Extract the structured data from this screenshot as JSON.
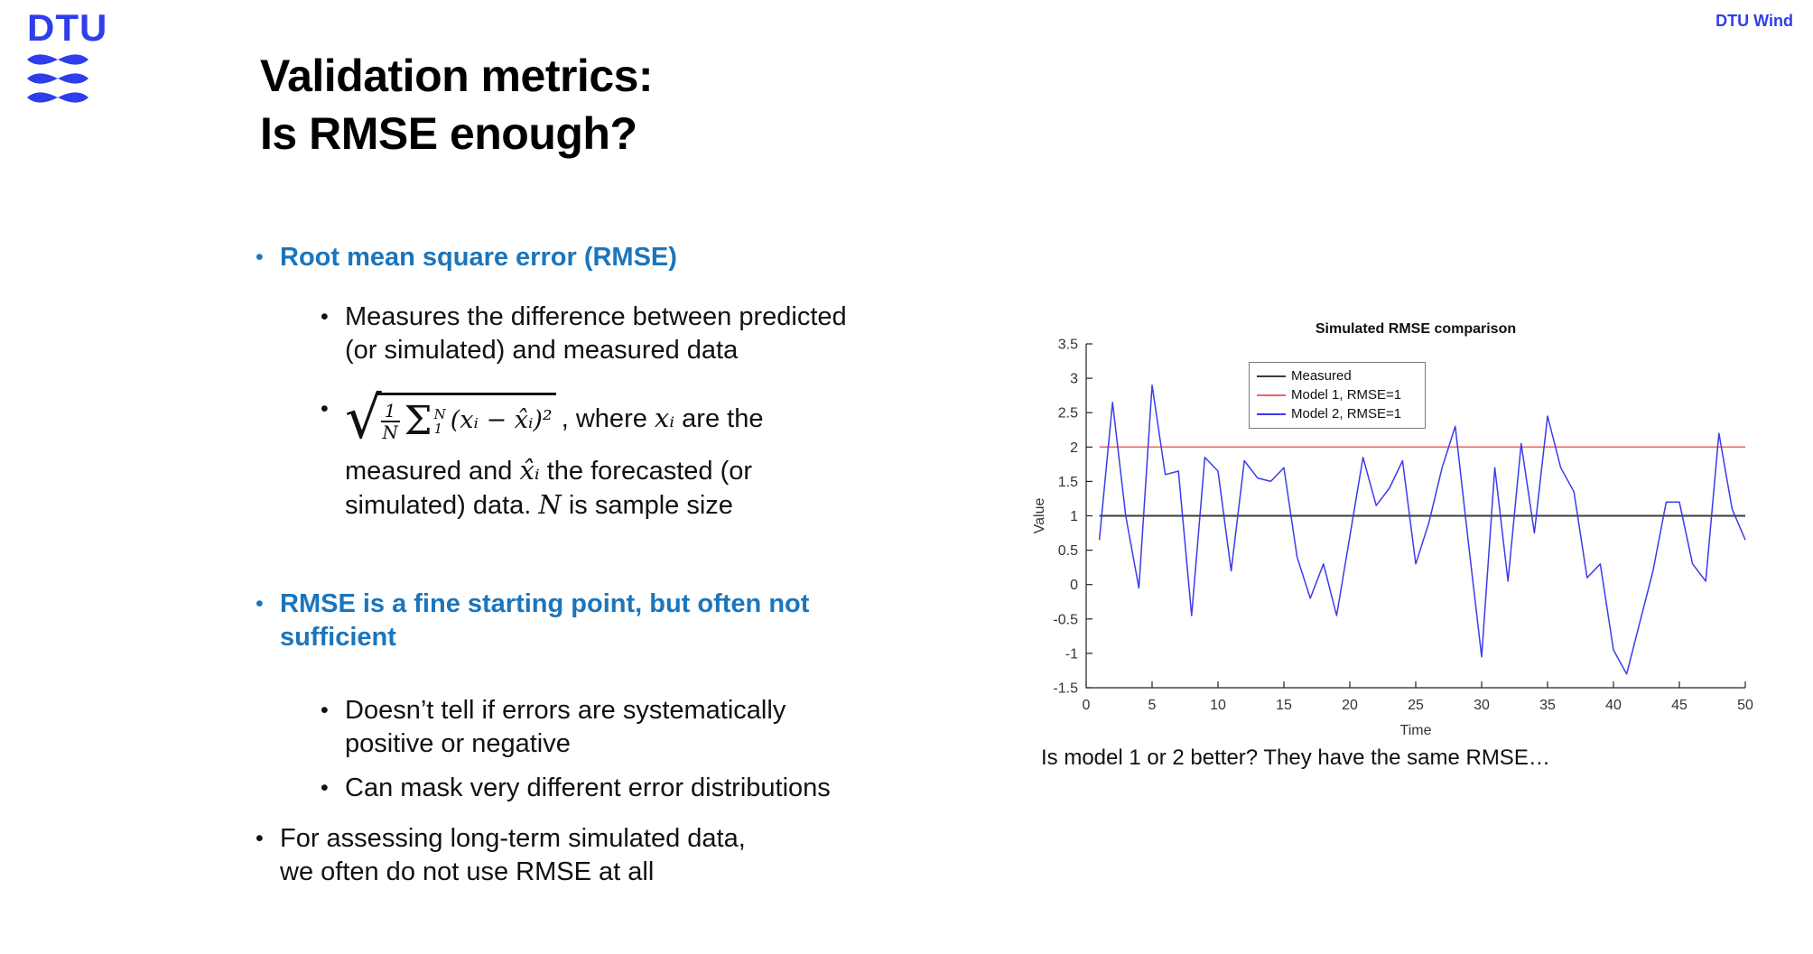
{
  "header": {
    "logo_text": "DTU",
    "org_label": "DTU Wind"
  },
  "bullet_char": "•",
  "title": {
    "line1": "Validation metrics:",
    "line2": "Is RMSE enough?"
  },
  "bullets": {
    "b1": "Root mean square error (RMSE)",
    "b2": "Measures the difference between predicted (or simulated) and measured data",
    "b3": "RMSE is a fine starting point, but often not sufficient",
    "b4": "Doesn’t tell if errors are systematically positive or negative",
    "b5": "Can mask very different error distributions",
    "b6": "For assessing long-term simulated data, we often do not use RMSE at all"
  },
  "formula": {
    "radical_char": "√",
    "frac_num": "1",
    "frac_den": "N",
    "sum_char": "Σ",
    "sum_upper": "N",
    "sum_lower": "1",
    "expr": "(xᵢ − x̂ᵢ)²",
    "where_pre": ", where ",
    "where_math": "xᵢ",
    "where_post": " are the",
    "l2_pre": "measured and ",
    "l2_math": "x̂ᵢ",
    "l2_post": " the forecasted (or",
    "l3_pre": "simulated) data. ",
    "l3_math": "N",
    "l3_post": " is sample size"
  },
  "caption": "Is model 1 or 2 better? They have the same RMSE…",
  "colors": {
    "dtu_blue": "#2f3eea",
    "accent_blue": "#1b75bc",
    "measured_line": "#3a3a3a",
    "model1_line": "#f5615c",
    "model2_line": "#3b3bec"
  },
  "chart_data": {
    "type": "line",
    "title": "Simulated RMSE comparison",
    "xlabel": "Time",
    "ylabel": "Value",
    "xlim": [
      0,
      50
    ],
    "ylim": [
      -1.5,
      3.5
    ],
    "xticks": [
      0,
      5,
      10,
      15,
      20,
      25,
      30,
      35,
      40,
      45,
      50
    ],
    "yticks": [
      -1.5,
      -1,
      -0.5,
      0,
      0.5,
      1,
      1.5,
      2,
      2.5,
      3,
      3.5
    ],
    "grid": false,
    "legend_position": "inside-top",
    "series": [
      {
        "name": "Measured",
        "color": "#3a3a3a",
        "stroke_width": 2,
        "x": [
          1,
          50
        ],
        "values": [
          1,
          1
        ]
      },
      {
        "name": "Model 1, RMSE=1",
        "color": "#f5615c",
        "stroke_width": 1.5,
        "x": [
          1,
          50
        ],
        "values": [
          2,
          2
        ]
      },
      {
        "name": "Model 2, RMSE=1",
        "color": "#3b3bec",
        "stroke_width": 1.5,
        "x_start": 1,
        "x_step": 1,
        "values": [
          0.65,
          2.65,
          1.0,
          -0.05,
          2.9,
          1.6,
          1.65,
          -0.45,
          1.85,
          1.65,
          0.2,
          1.8,
          1.55,
          1.5,
          1.7,
          0.4,
          -0.2,
          0.3,
          -0.45,
          0.7,
          1.85,
          1.15,
          1.4,
          1.8,
          0.3,
          0.9,
          1.7,
          2.3,
          0.6,
          -1.05,
          1.7,
          0.05,
          2.05,
          0.75,
          2.45,
          1.7,
          1.35,
          0.1,
          0.3,
          -0.95,
          -1.3,
          -0.55,
          0.2,
          1.2,
          1.2,
          0.3,
          0.05,
          2.2,
          1.1,
          0.65
        ]
      }
    ]
  }
}
